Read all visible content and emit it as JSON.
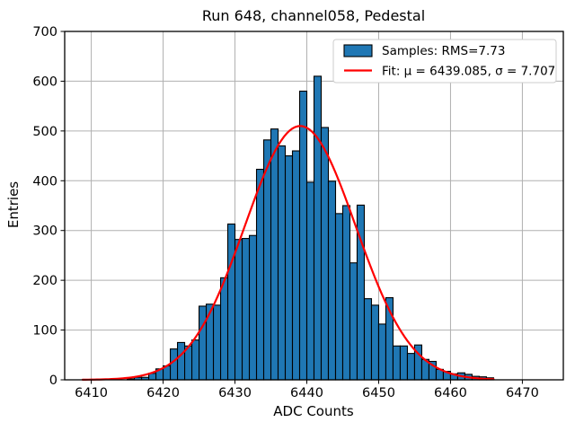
{
  "chart_data": {
    "type": "bar",
    "subtype": "histogram",
    "title": "Run 648, channel058, Pedestal",
    "xlabel": "ADC Counts",
    "ylabel": "Entries",
    "xlim": [
      6406.3,
      6475.7
    ],
    "ylim": [
      0,
      700
    ],
    "xticks": [
      6410,
      6420,
      6430,
      6440,
      6450,
      6460,
      6470
    ],
    "yticks": [
      0,
      100,
      200,
      300,
      400,
      500,
      600,
      700
    ],
    "grid": true,
    "legend_position": "upper right",
    "histogram": {
      "bin_start": 6415,
      "bin_width": 1,
      "counts": [
        2,
        5,
        5,
        13,
        22,
        28,
        62,
        75,
        68,
        80,
        148,
        152,
        150,
        205,
        313,
        282,
        284,
        290,
        423,
        482,
        504,
        470,
        450,
        460,
        580,
        397,
        610,
        507,
        399,
        334,
        350,
        235,
        351,
        163,
        150,
        112,
        165,
        68,
        68,
        53,
        70,
        41,
        37,
        21,
        17,
        12,
        14,
        11,
        7,
        6,
        4
      ],
      "rms": 7.73,
      "fill_color": "#1f77b4",
      "edge_color": "#000000"
    },
    "fit_curve": {
      "shape": "gaussian",
      "mu": 6439.085,
      "sigma": 7.707,
      "peak": 510,
      "x_start": 6408.8,
      "x_end": 6466.3,
      "color": "#ff0000"
    },
    "legend": {
      "samples_label": "Samples: RMS=7.73",
      "fit_label": "Fit: μ = 6439.085, σ = 7.707",
      "samples_swatch_color": "#1f77b4",
      "fit_swatch_color": "#ff0000"
    },
    "colors": {
      "grid": "#b0b0b0",
      "spine": "#000000",
      "legend_border": "#cccccc",
      "background": "#ffffff"
    }
  }
}
